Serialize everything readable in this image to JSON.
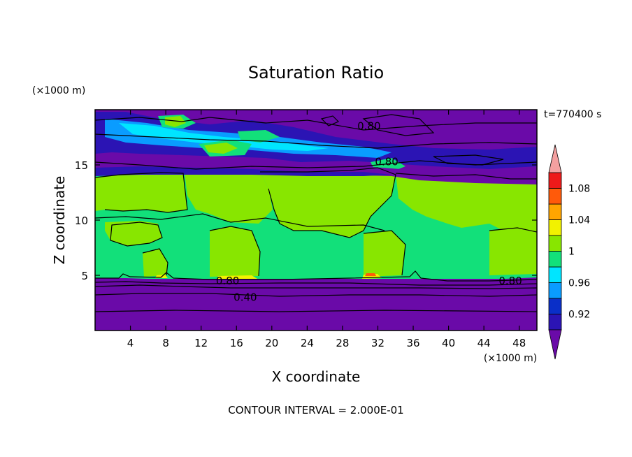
{
  "chart_data": {
    "type": "heatmap",
    "title": "Saturation Ratio",
    "xlabel": "X coordinate",
    "ylabel": "Z coordinate",
    "x_units": "(×1000 m)",
    "y_units": "(×1000 m)",
    "time_label": "t=770400 s",
    "footer": "CONTOUR INTERVAL = 2.000E-01",
    "xlim": [
      0,
      50
    ],
    "ylim": [
      0,
      20
    ],
    "x_ticks": [
      4,
      8,
      12,
      16,
      20,
      24,
      28,
      32,
      36,
      40,
      44,
      48
    ],
    "y_ticks": [
      5,
      10,
      15
    ],
    "colorbar": {
      "levels": [
        0.9,
        0.92,
        0.94,
        0.96,
        0.98,
        1.0,
        1.02,
        1.04,
        1.06,
        1.08,
        1.1
      ],
      "tick_labels": [
        "0.92",
        "0.96",
        "1",
        "1.04",
        "1.08"
      ],
      "tick_values": [
        0.92,
        0.96,
        1.0,
        1.04,
        1.08
      ],
      "colors": [
        "#6a0aa8",
        "#2b14b4",
        "#0a2fc8",
        "#0a9cff",
        "#00e5ff",
        "#12e07a",
        "#88e600",
        "#f2f200",
        "#ffa500",
        "#ff5a0a",
        "#ee1a1a",
        "#f4a0a0"
      ]
    },
    "contour_labels": [
      {
        "text": "0.80",
        "x": 31,
        "z": 18.5
      },
      {
        "text": "0.80",
        "x": 33,
        "z": 15.3
      },
      {
        "text": "0.80",
        "x": 15,
        "z": 4.5
      },
      {
        "text": "0.40",
        "x": 17,
        "z": 3.0
      },
      {
        "text": "0.80",
        "x": 47,
        "z": 4.5
      }
    ],
    "regions": {
      "lower_layer": {
        "z_range": [
          0,
          4.8
        ],
        "value": "< 0.90",
        "contours": [
          0.8,
          0.6,
          0.4,
          0.2
        ]
      },
      "middle_layer": {
        "z_range": [
          4.8,
          14
        ],
        "value": "0.98 – 1.02"
      },
      "upper_layer": {
        "z_range": [
          14,
          20
        ],
        "value": "< 0.90 with patches 0.92 – 1.02"
      }
    }
  }
}
